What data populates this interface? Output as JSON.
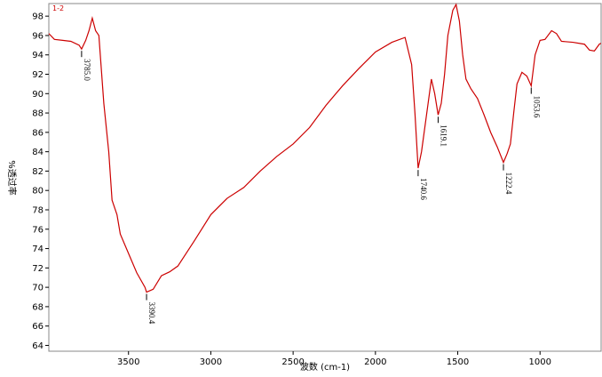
{
  "chart_data": {
    "type": "line",
    "tag": "1-2",
    "xlabel": "波数 (cm-1)",
    "ylabel": "%透过率",
    "x": [
      3984,
      3950,
      3900,
      3850,
      3800,
      3785,
      3760,
      3740,
      3720,
      3700,
      3680,
      3650,
      3620,
      3600,
      3570,
      3550,
      3500,
      3450,
      3400,
      3390.4,
      3350,
      3300,
      3250,
      3200,
      3100,
      3000,
      2900,
      2800,
      2700,
      2600,
      2500,
      2400,
      2300,
      2200,
      2100,
      2000,
      1900,
      1820,
      1780,
      1760,
      1740.6,
      1720,
      1680,
      1660,
      1640,
      1619.1,
      1600,
      1580,
      1560,
      1530,
      1510,
      1490,
      1470,
      1450,
      1420,
      1380,
      1340,
      1300,
      1260,
      1222.4,
      1200,
      1180,
      1160,
      1140,
      1110,
      1080,
      1053.6,
      1030,
      1000,
      970,
      930,
      900,
      870,
      800,
      730,
      700,
      670,
      640,
      630
    ],
    "series": [
      {
        "name": "1-2",
        "color": "#cc0000",
        "values": [
          96.2,
          95.6,
          95.5,
          95.4,
          95.0,
          94.6,
          95.5,
          96.5,
          97.8,
          96.5,
          96.0,
          89,
          84,
          79,
          77.5,
          75.5,
          73.5,
          71.5,
          70,
          69.5,
          69.8,
          71.2,
          71.6,
          72.2,
          74.8,
          77.5,
          79.2,
          80.3,
          82,
          83.5,
          84.8,
          86.5,
          88.8,
          90.8,
          92.6,
          94.3,
          95.3,
          95.8,
          93,
          88,
          82.3,
          84,
          89,
          91.5,
          90,
          87.8,
          89,
          92,
          96,
          98.6,
          99.2,
          97.5,
          94,
          91.5,
          90.5,
          89.5,
          87.8,
          86,
          84.5,
          82.9,
          83.8,
          84.8,
          88,
          91,
          92.2,
          91.8,
          90.8,
          94,
          95.5,
          95.6,
          96.5,
          96.2,
          95.4,
          95.3,
          95.1,
          94.5,
          94.4,
          95.1,
          95.2
        ]
      }
    ],
    "annotations": [
      {
        "x": 3785.0,
        "y": 94.6,
        "label": "3785.0"
      },
      {
        "x": 3390.4,
        "y": 69.5,
        "label": "3390.4"
      },
      {
        "x": 1740.6,
        "y": 82.3,
        "label": "1740.6"
      },
      {
        "x": 1619.1,
        "y": 87.8,
        "label": "1619.1"
      },
      {
        "x": 1222.4,
        "y": 82.9,
        "label": "1222.4"
      },
      {
        "x": 1053.6,
        "y": 90.8,
        "label": "1053.6"
      }
    ],
    "xlim": [
      3984,
      629
    ],
    "ylim": [
      63.4,
      99.3
    ],
    "xticks": [
      3500,
      3000,
      2500,
      2000,
      1500,
      1000
    ],
    "yticks": [
      64,
      66,
      68,
      70,
      72,
      74,
      76,
      78,
      80,
      82,
      84,
      86,
      88,
      90,
      92,
      94,
      96,
      98
    ],
    "grid": false
  }
}
